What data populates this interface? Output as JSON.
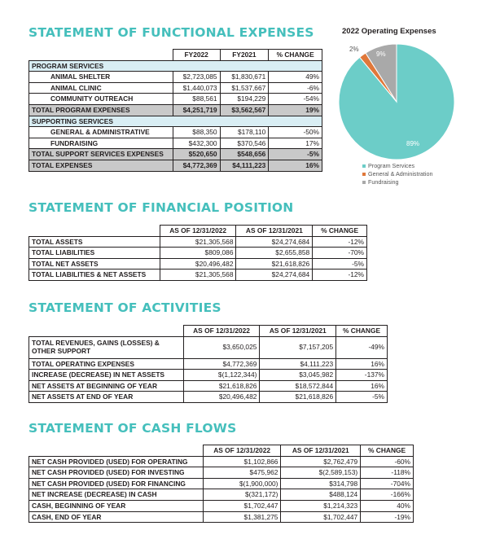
{
  "functional": {
    "title": "STATEMENT OF FUNCTIONAL EXPENSES",
    "headers": [
      "FY2022",
      "FY2021",
      "% CHANGE"
    ],
    "program_header": "PROGRAM SERVICES",
    "program_rows": [
      {
        "label": "ANIMAL SHELTER",
        "fy2022": "$2,723,085",
        "fy2021": "$1,830,671",
        "change": "49%"
      },
      {
        "label": "ANIMAL CLINIC",
        "fy2022": "$1,440,073",
        "fy2021": "$1,537,667",
        "change": "-6%"
      },
      {
        "label": "COMMUNITY OUTREACH",
        "fy2022": "$88,561",
        "fy2021": "$194,229",
        "change": "-54%"
      }
    ],
    "program_total": {
      "label": "TOTAL PROGRAM EXPENSES",
      "fy2022": "$4,251,719",
      "fy2021": "$3,562,567",
      "change": "19%"
    },
    "support_header": "SUPPORTING SERVICES",
    "support_rows": [
      {
        "label": "GENERAL & ADMINISTRATIVE",
        "fy2022": "$88,350",
        "fy2021": "$178,110",
        "change": "-50%"
      },
      {
        "label": "FUNDRAISING",
        "fy2022": "$432,300",
        "fy2021": "$370,546",
        "change": "17%"
      }
    ],
    "support_total": {
      "label": "TOTAL SUPPORT SERVICES EXPENSES",
      "fy2022": "$520,650",
      "fy2021": "$548,656",
      "change": "-5%"
    },
    "grand_total": {
      "label": "TOTAL EXPENSES",
      "fy2022": "$4,772,369",
      "fy2021": "$4,111,223",
      "change": "16%"
    }
  },
  "pie": {
    "title": "2022 Operating Expenses",
    "colors": [
      "#6ccdc8",
      "#e0783a",
      "#a9a9a9"
    ],
    "chart_data": {
      "type": "pie",
      "title": "2022 Operating Expenses",
      "categories": [
        "Program Services",
        "General & Administration",
        "Fundraising"
      ],
      "values": [
        89,
        2,
        9
      ],
      "labels": [
        "89%",
        "2%",
        "9%"
      ],
      "legend": "bottom"
    }
  },
  "position": {
    "title": "STATEMENT OF FINANCIAL POSITION",
    "headers": [
      "AS OF 12/31/2022",
      "AS OF 12/31/2021",
      "% CHANGE"
    ],
    "rows": [
      {
        "label": "TOTAL ASSETS",
        "a": "$21,305,568",
        "b": "$24,274,684",
        "c": "-12%"
      },
      {
        "label": "TOTAL LIABILITIES",
        "a": "$809,086",
        "b": "$2,655,858",
        "c": "-70%"
      },
      {
        "label": "TOTAL NET ASSETS",
        "a": "$20,496,482",
        "b": "$21,618,826",
        "c": "-5%"
      },
      {
        "label": "TOTAL LIABILITIES & NET ASSETS",
        "a": "$21,305,568",
        "b": "$24,274,684",
        "c": "-12%"
      }
    ]
  },
  "activities": {
    "title": "STATEMENT OF ACTIVITIES",
    "headers": [
      "AS OF 12/31/2022",
      "AS OF 12/31/2021",
      "% CHANGE"
    ],
    "rows": [
      {
        "label": "TOTAL REVENUES, GAINS (LOSSES) & OTHER SUPPORT",
        "a": "$3,650,025",
        "b": "$7,157,205",
        "c": "-49%"
      },
      {
        "label": "TOTAL OPERATING EXPENSES",
        "a": "$4,772,369",
        "b": "$4,111,223",
        "c": "16%"
      },
      {
        "label": "INCREASE (DECREASE) IN NET ASSETS",
        "a": "$(1,122,344)",
        "b": "$3,045,982",
        "c": "-137%"
      },
      {
        "label": "NET ASSETS AT BEGINNING OF YEAR",
        "a": "$21,618,826",
        "b": "$18,572,844",
        "c": "16%"
      },
      {
        "label": "NET ASSETS AT END OF YEAR",
        "a": "$20,496,482",
        "b": "$21,618,826",
        "c": "-5%"
      }
    ]
  },
  "cashflows": {
    "title": "STATEMENT OF CASH FLOWS",
    "headers": [
      "AS OF 12/31/2022",
      "AS OF 12/31/2021",
      "% CHANGE"
    ],
    "rows": [
      {
        "label": "NET CASH PROVIDED (USED) FOR OPERATING",
        "a": "$1,102,866",
        "b": "$2,762,479",
        "c": "-60%"
      },
      {
        "label": "NET CASH PROVIDED (USED) FOR INVESTING",
        "a": "$475,962",
        "b": "$(2,589,153)",
        "c": "-118%"
      },
      {
        "label": "NET CASH PROVIDED (USED) FOR FINANCING",
        "a": "$(1,900,000)",
        "b": "$314,798",
        "c": "-704%"
      },
      {
        "label": "NET INCREASE (DECREASE) IN CASH",
        "a": "$(321,172)",
        "b": "$488,124",
        "c": "-166%"
      },
      {
        "label": "CASH, BEGINNING OF YEAR",
        "a": "$1,702,447",
        "b": "$1,214,323",
        "c": "40%"
      },
      {
        "label": "CASH, END OF YEAR",
        "a": "$1,381,275",
        "b": "$1,702,447",
        "c": "-19%"
      }
    ]
  }
}
